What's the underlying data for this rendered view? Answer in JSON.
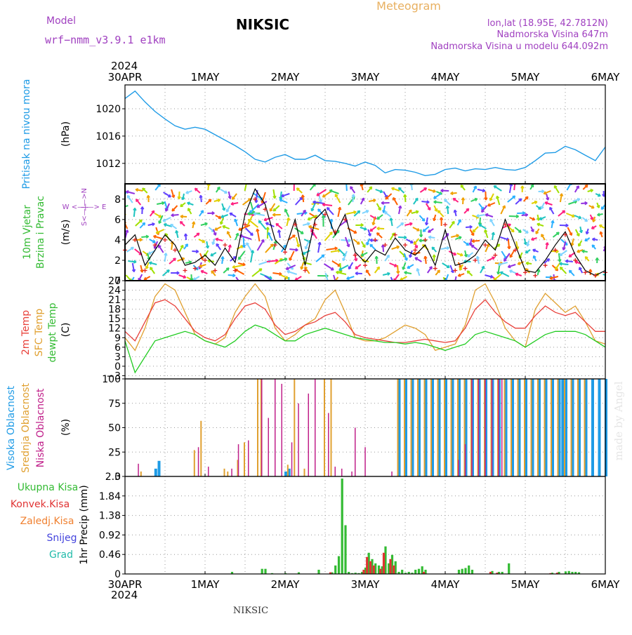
{
  "header": {
    "model_label": "Model",
    "model_name": "wrf−nmm_v3.9.1  e1km",
    "station": "NIKSIC",
    "meteogram_label": "Meteogram",
    "lonlat": "lon,lat (18.95E, 42.7812N)",
    "elevation": "Nadmorska Visina 647m",
    "model_elevation": "Nadmorska Visina u modelu 644.092m",
    "year": "2024"
  },
  "footer": {
    "station": "NIKSIC",
    "watermark": "made by Angel"
  },
  "colors": {
    "pressure": "#1e9be6",
    "wind_speed": "#000000",
    "wind_gust": "#e02020",
    "temp_2m": "#e8403a",
    "temp_sfc": "#e0a030",
    "dewpoint": "#22cc22",
    "cloud_high": "#1e9be6",
    "cloud_mid": "#e0a030",
    "cloud_low": "#c0208a",
    "precip_total": "#33bb33",
    "precip_conv": "#e03333",
    "precip_strat": "#f08030",
    "snow": "#4444dd",
    "hail": "#22bbaa",
    "title_purple": "#a040c0",
    "title_orange": "#e8b060"
  },
  "time_axis": {
    "top_labels": [
      "30APR",
      "1MAY",
      "2MAY",
      "3MAY",
      "4MAY",
      "5MAY",
      "6MAY"
    ],
    "bottom_labels": [
      "30APR",
      "1MAY",
      "2MAY",
      "3MAY",
      "4MAY",
      "5MAY",
      "6MAY"
    ],
    "top_year": "2024",
    "bottom_year": "2024"
  },
  "chart_data": [
    {
      "type": "line",
      "panel": "pressure",
      "ylabel_main": "Pritisak na nivou mora",
      "ylabel_unit": "(hPa)",
      "ylim": [
        1009,
        1023.5
      ],
      "yticks": [
        1012,
        1016,
        1020
      ],
      "ytick_labels": [
        "1012",
        "1016",
        "1020"
      ],
      "grid": true,
      "x_hours": [
        0,
        3,
        6,
        9,
        12,
        15,
        18,
        21,
        24,
        27,
        30,
        33,
        36,
        39,
        42,
        45,
        48,
        51,
        54,
        57,
        60,
        63,
        66,
        69,
        72,
        75,
        78,
        81,
        84,
        87,
        90,
        93,
        96,
        99,
        102,
        105,
        108,
        111,
        114,
        117,
        120,
        123,
        126,
        129,
        132,
        135,
        138,
        141,
        144
      ],
      "series": [
        {
          "values": [
            1021.5,
            1022.6,
            1021.0,
            1019.6,
            1018.5,
            1017.5,
            1017.0,
            1017.3,
            1017.0,
            1016.2,
            1015.4,
            1014.6,
            1013.7,
            1012.6,
            1012.2,
            1012.9,
            1013.3,
            1012.6,
            1012.6,
            1013.2,
            1012.4,
            1012.3,
            1012.0,
            1011.6,
            1012.2,
            1011.7,
            1010.6,
            1011.1,
            1011.0,
            1010.7,
            1010.2,
            1010.4,
            1011.1,
            1011.3,
            1010.9,
            1011.2,
            1011.1,
            1011.4,
            1011.1,
            1011.0,
            1011.4,
            1012.4,
            1013.5,
            1013.6,
            1014.5,
            1014.0,
            1013.2,
            1012.4,
            1014.4
          ]
        }
      ]
    },
    {
      "type": "line",
      "panel": "wind",
      "ylabel_main": "10m Vjetar",
      "ylabel_main2": "Brzina i Pravac",
      "ylabel_unit": "(m/s)",
      "compass_label": "W <—|—> E",
      "compass_label2": "S<—|—>N",
      "ylim": [
        0,
        9.5
      ],
      "yticks": [
        0,
        2,
        4,
        6,
        8
      ],
      "ytick_labels": [
        "0",
        "2",
        "4",
        "6",
        "8"
      ],
      "grid": true,
      "x_hours": [
        0,
        3,
        6,
        9,
        12,
        15,
        18,
        21,
        24,
        27,
        30,
        33,
        36,
        39,
        42,
        45,
        48,
        51,
        54,
        57,
        60,
        63,
        66,
        69,
        72,
        75,
        78,
        81,
        84,
        87,
        90,
        93,
        96,
        99,
        102,
        105,
        108,
        111,
        114,
        117,
        120,
        123,
        126,
        129,
        132,
        135,
        138,
        141,
        144
      ],
      "series": [
        {
          "name": "speed",
          "values": [
            3.5,
            4.5,
            1.5,
            3.0,
            4.5,
            3.5,
            1.5,
            1.8,
            2.5,
            1.5,
            3.2,
            1.8,
            6.5,
            9.0,
            7.5,
            4.0,
            3.0,
            6.0,
            1.5,
            6.0,
            7.0,
            4.5,
            6.5,
            2.8,
            1.8,
            3.0,
            2.5,
            4.2,
            3.0,
            2.5,
            3.5,
            1.5,
            5.0,
            1.5,
            1.8,
            2.5,
            4.0,
            3.0,
            6.0,
            3.5,
            1.0,
            0.8,
            2.0,
            3.5,
            4.8,
            2.5,
            1.0,
            0.5,
            1.0
          ]
        },
        {
          "name": "gust",
          "values": [
            3.0,
            4.0,
            1.0,
            3.5,
            4.0,
            3.0,
            1.0,
            1.2,
            2.0,
            1.0,
            3.5,
            1.0,
            5.5,
            8.0,
            7.0,
            3.5,
            2.8,
            5.5,
            1.0,
            5.5,
            6.5,
            4.8,
            6.0,
            2.5,
            1.5,
            4.0,
            3.5,
            4.5,
            3.5,
            3.0,
            4.0,
            1.2,
            5.5,
            1.0,
            1.2,
            2.0,
            3.5,
            2.5,
            5.5,
            3.0,
            0.8,
            0.5,
            1.5,
            3.0,
            4.5,
            2.0,
            0.8,
            0.5,
            0.8
          ]
        }
      ]
    },
    {
      "type": "line",
      "panel": "temperature",
      "ylabel_main": "2m Temp",
      "ylabel_main2": "SFC Temp",
      "ylabel_main3": "dewpt Temp",
      "ylabel_unit": "(C)",
      "ylim": [
        -4,
        27
      ],
      "yticks": [
        -3,
        0,
        3,
        6,
        9,
        12,
        15,
        18,
        21,
        24,
        27
      ],
      "ytick_labels": [
        "−3",
        "0",
        "3",
        "6",
        "9",
        "12",
        "15",
        "18",
        "21",
        "24",
        "27"
      ],
      "grid": true,
      "x_hours": [
        0,
        3,
        6,
        9,
        12,
        15,
        18,
        21,
        24,
        27,
        30,
        33,
        36,
        39,
        42,
        45,
        48,
        51,
        54,
        57,
        60,
        63,
        66,
        69,
        72,
        75,
        78,
        81,
        84,
        87,
        90,
        93,
        96,
        99,
        102,
        105,
        108,
        111,
        114,
        117,
        120,
        123,
        126,
        129,
        132,
        135,
        138,
        141,
        144
      ],
      "series": [
        {
          "name": "2m Temp",
          "values": [
            11,
            8,
            14,
            20,
            21,
            19,
            15,
            11,
            9,
            8,
            10,
            15,
            19,
            20,
            18,
            13,
            10,
            11,
            13,
            14,
            16,
            17,
            14,
            10,
            9,
            8.5,
            8,
            7.5,
            7.5,
            8,
            8.5,
            8,
            7.5,
            8,
            12,
            18,
            21,
            17,
            14,
            12,
            12,
            16,
            19,
            17,
            16,
            17,
            14,
            11,
            11
          ]
        },
        {
          "name": "SFC Temp",
          "values": [
            9,
            5,
            12,
            22,
            26,
            24,
            17,
            10,
            8,
            7,
            9,
            17,
            22,
            26,
            22,
            12,
            8,
            10,
            13,
            15,
            21,
            24,
            17,
            9,
            8,
            8,
            9,
            11,
            13,
            12,
            10,
            5,
            6,
            7,
            13,
            24,
            26,
            20,
            12,
            8,
            6,
            18,
            23,
            20,
            17,
            19,
            14,
            8,
            7
          ]
        },
        {
          "name": "dewpt Temp",
          "values": [
            8,
            -2,
            3,
            8,
            9,
            10,
            11,
            10,
            8,
            7,
            6,
            8,
            11,
            13,
            12,
            10,
            8,
            8,
            10,
            11,
            12,
            11,
            10,
            9,
            8.5,
            8,
            7.5,
            7.5,
            7,
            7.5,
            7,
            6,
            5,
            6,
            7,
            10,
            11,
            10,
            9,
            8,
            6,
            8,
            10,
            11,
            11,
            11,
            10,
            8,
            6
          ]
        }
      ]
    },
    {
      "type": "bar",
      "panel": "cloud",
      "ylabel_main": "Visoka Oblacnost",
      "ylabel_main2": "Srednja Oblacnost",
      "ylabel_main3": "Niska Oblacnost",
      "ylabel_unit": "(%)",
      "ylim": [
        0,
        100
      ],
      "yticks": [
        0,
        25,
        50,
        75,
        100
      ],
      "ytick_labels": [
        "0",
        "25",
        "50",
        "75",
        "100"
      ],
      "grid": true,
      "series": [
        {
          "name": "Visoka Oblacnost",
          "hours": [
            9,
            10,
            48,
            49,
            82,
            84,
            86,
            88,
            90,
            92,
            94,
            96,
            98,
            100,
            102,
            104,
            106,
            108,
            110,
            112,
            114,
            116,
            118,
            120,
            122,
            124,
            126,
            128,
            130,
            131,
            132,
            134,
            136,
            138,
            140,
            142,
            144
          ],
          "values": [
            8,
            16,
            5,
            8,
            100,
            100,
            100,
            100,
            100,
            100,
            100,
            100,
            100,
            100,
            100,
            100,
            100,
            100,
            100,
            100,
            100,
            100,
            100,
            100,
            100,
            100,
            100,
            100,
            100,
            100,
            100,
            100,
            100,
            100,
            100,
            100,
            100
          ]
        },
        {
          "name": "Srednja Oblacnost",
          "hours": [
            5,
            21,
            23,
            30,
            31,
            34,
            36,
            40,
            41,
            49,
            51,
            54,
            60,
            62,
            82,
            84,
            86,
            88,
            90,
            92,
            94,
            96,
            98,
            100,
            102,
            104,
            106,
            108,
            110,
            112,
            114,
            116,
            118,
            120,
            122,
            124,
            126,
            128,
            130,
            132,
            134,
            136,
            138
          ],
          "values": [
            5,
            27,
            57,
            8,
            5,
            17,
            35,
            100,
            100,
            12,
            100,
            8,
            100,
            100,
            100,
            100,
            100,
            100,
            100,
            100,
            100,
            100,
            100,
            100,
            100,
            100,
            100,
            100,
            100,
            100,
            100,
            100,
            100,
            100,
            100,
            100,
            100,
            100,
            100,
            100,
            100,
            100,
            100
          ]
        },
        {
          "name": "Niska Oblacnost",
          "hours": [
            4,
            22,
            25,
            32,
            34,
            37,
            41,
            43,
            45,
            47,
            50,
            52,
            55,
            57,
            61,
            63,
            65,
            68,
            69,
            72,
            80,
            100,
            102,
            104,
            106,
            108,
            110,
            112,
            113
          ],
          "values": [
            13,
            30,
            10,
            8,
            33,
            37,
            100,
            60,
            100,
            95,
            35,
            75,
            85,
            100,
            65,
            10,
            8,
            5,
            50,
            30,
            5,
            17,
            33,
            100,
            100,
            100,
            100,
            100,
            100
          ]
        }
      ]
    },
    {
      "type": "bar",
      "panel": "precip",
      "ylabel_main": "1hr Precip",
      "ylabel_unit": "(mm)",
      "legend": [
        "Ukupna Kisa",
        "Konvek.Kisa",
        "Zaledj.Kisa",
        "Snijeg",
        "Grad"
      ],
      "ylim": [
        0,
        2.3
      ],
      "yticks": [
        0,
        0.46,
        0.92,
        1.38,
        1.84,
        2.3
      ],
      "ytick_labels": [
        "0",
        "0.46",
        "0.92",
        "1.38",
        "1.84",
        "2.3"
      ],
      "grid": true,
      "series": [
        {
          "name": "Ukupna Kisa",
          "hours": [
            32,
            41,
            42,
            44,
            48,
            52,
            58,
            62,
            63,
            64,
            65,
            66,
            67,
            68,
            69,
            70,
            71,
            72,
            73,
            74,
            75,
            76,
            77,
            78,
            79,
            80,
            81,
            82,
            83,
            84,
            85,
            86,
            87,
            88,
            89,
            90,
            100,
            101,
            102,
            103,
            104,
            110,
            112,
            113,
            115,
            128,
            130,
            132,
            133,
            134,
            135,
            136
          ],
          "values": [
            0.05,
            0.12,
            0.12,
            0.02,
            0.02,
            0.04,
            0.1,
            0.04,
            0.2,
            0.42,
            2.25,
            1.15,
            0.05,
            0.02,
            0.03,
            0.02,
            0.05,
            0.15,
            0.5,
            0.35,
            0.25,
            0.2,
            0.18,
            0.65,
            0.25,
            0.45,
            0.3,
            0.05,
            0.1,
            0.03,
            0.05,
            0.03,
            0.1,
            0.12,
            0.18,
            0.1,
            0.1,
            0.12,
            0.14,
            0.2,
            0.1,
            0.07,
            0.05,
            0.05,
            0.25,
            0.03,
            0.05,
            0.06,
            0.07,
            0.05,
            0.05,
            0.04
          ]
        },
        {
          "name": "Konvek.Kisa",
          "hours": [
            62,
            72,
            73,
            74,
            75,
            77,
            78,
            80,
            81,
            90,
            110,
            112,
            128,
            130
          ],
          "values": [
            0.04,
            0.1,
            0.4,
            0.3,
            0.2,
            0.12,
            0.5,
            0.35,
            0.2,
            0.05,
            0.05,
            0.03,
            0.02,
            0.03
          ]
        }
      ]
    }
  ]
}
